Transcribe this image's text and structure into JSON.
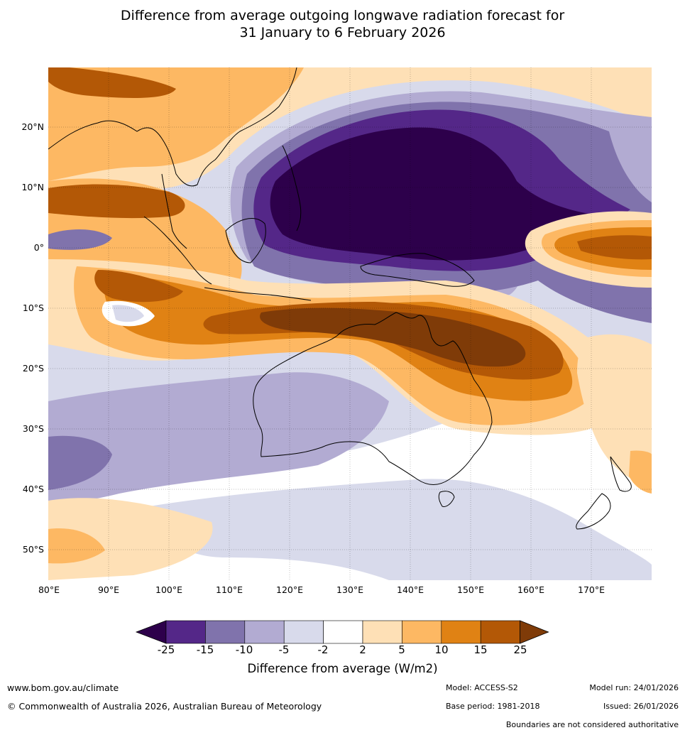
{
  "title": {
    "line1": "Difference from average outgoing longwave radiation forecast for",
    "line2": "31 January to 6 February 2026"
  },
  "map": {
    "description_hidden": false,
    "latitude_labels": [
      "20°N",
      "10°N",
      "0°",
      "10°S",
      "20°S",
      "30°S",
      "40°S",
      "50°S"
    ],
    "longitude_labels": [
      "80°E",
      "90°E",
      "100°E",
      "110°E",
      "120°E",
      "130°E",
      "140°E",
      "150°E",
      "160°E",
      "170°E"
    ]
  },
  "legend": {
    "ticks": [
      "-25",
      "-15",
      "-10",
      "-5",
      "-2",
      "2",
      "5",
      "10",
      "15",
      "25"
    ],
    "label": "Difference from average (W/m2)",
    "colors": {
      "under": "#2d004b",
      "c1": "#542788",
      "c2": "#8073ac",
      "c3": "#b2abd2",
      "c4": "#d8daeb",
      "c5": "#ffffff",
      "c6": "#fee0b6",
      "c7": "#fdb863",
      "c8": "#e08214",
      "c9": "#b35806",
      "over": "#7f3b08"
    }
  },
  "footer": {
    "url": "www.bom.gov.au/climate",
    "copyright": "© Commonwealth of Australia 2026, Australian Bureau of Meteorology",
    "model": "Model: ACCESS-S2",
    "base_period": "Base period: 1981-2018",
    "model_run": "Model run: 24/01/2026",
    "issued": "Issued: 26/01/2026",
    "disclaimer": "Boundaries are not considered authoritative"
  }
}
